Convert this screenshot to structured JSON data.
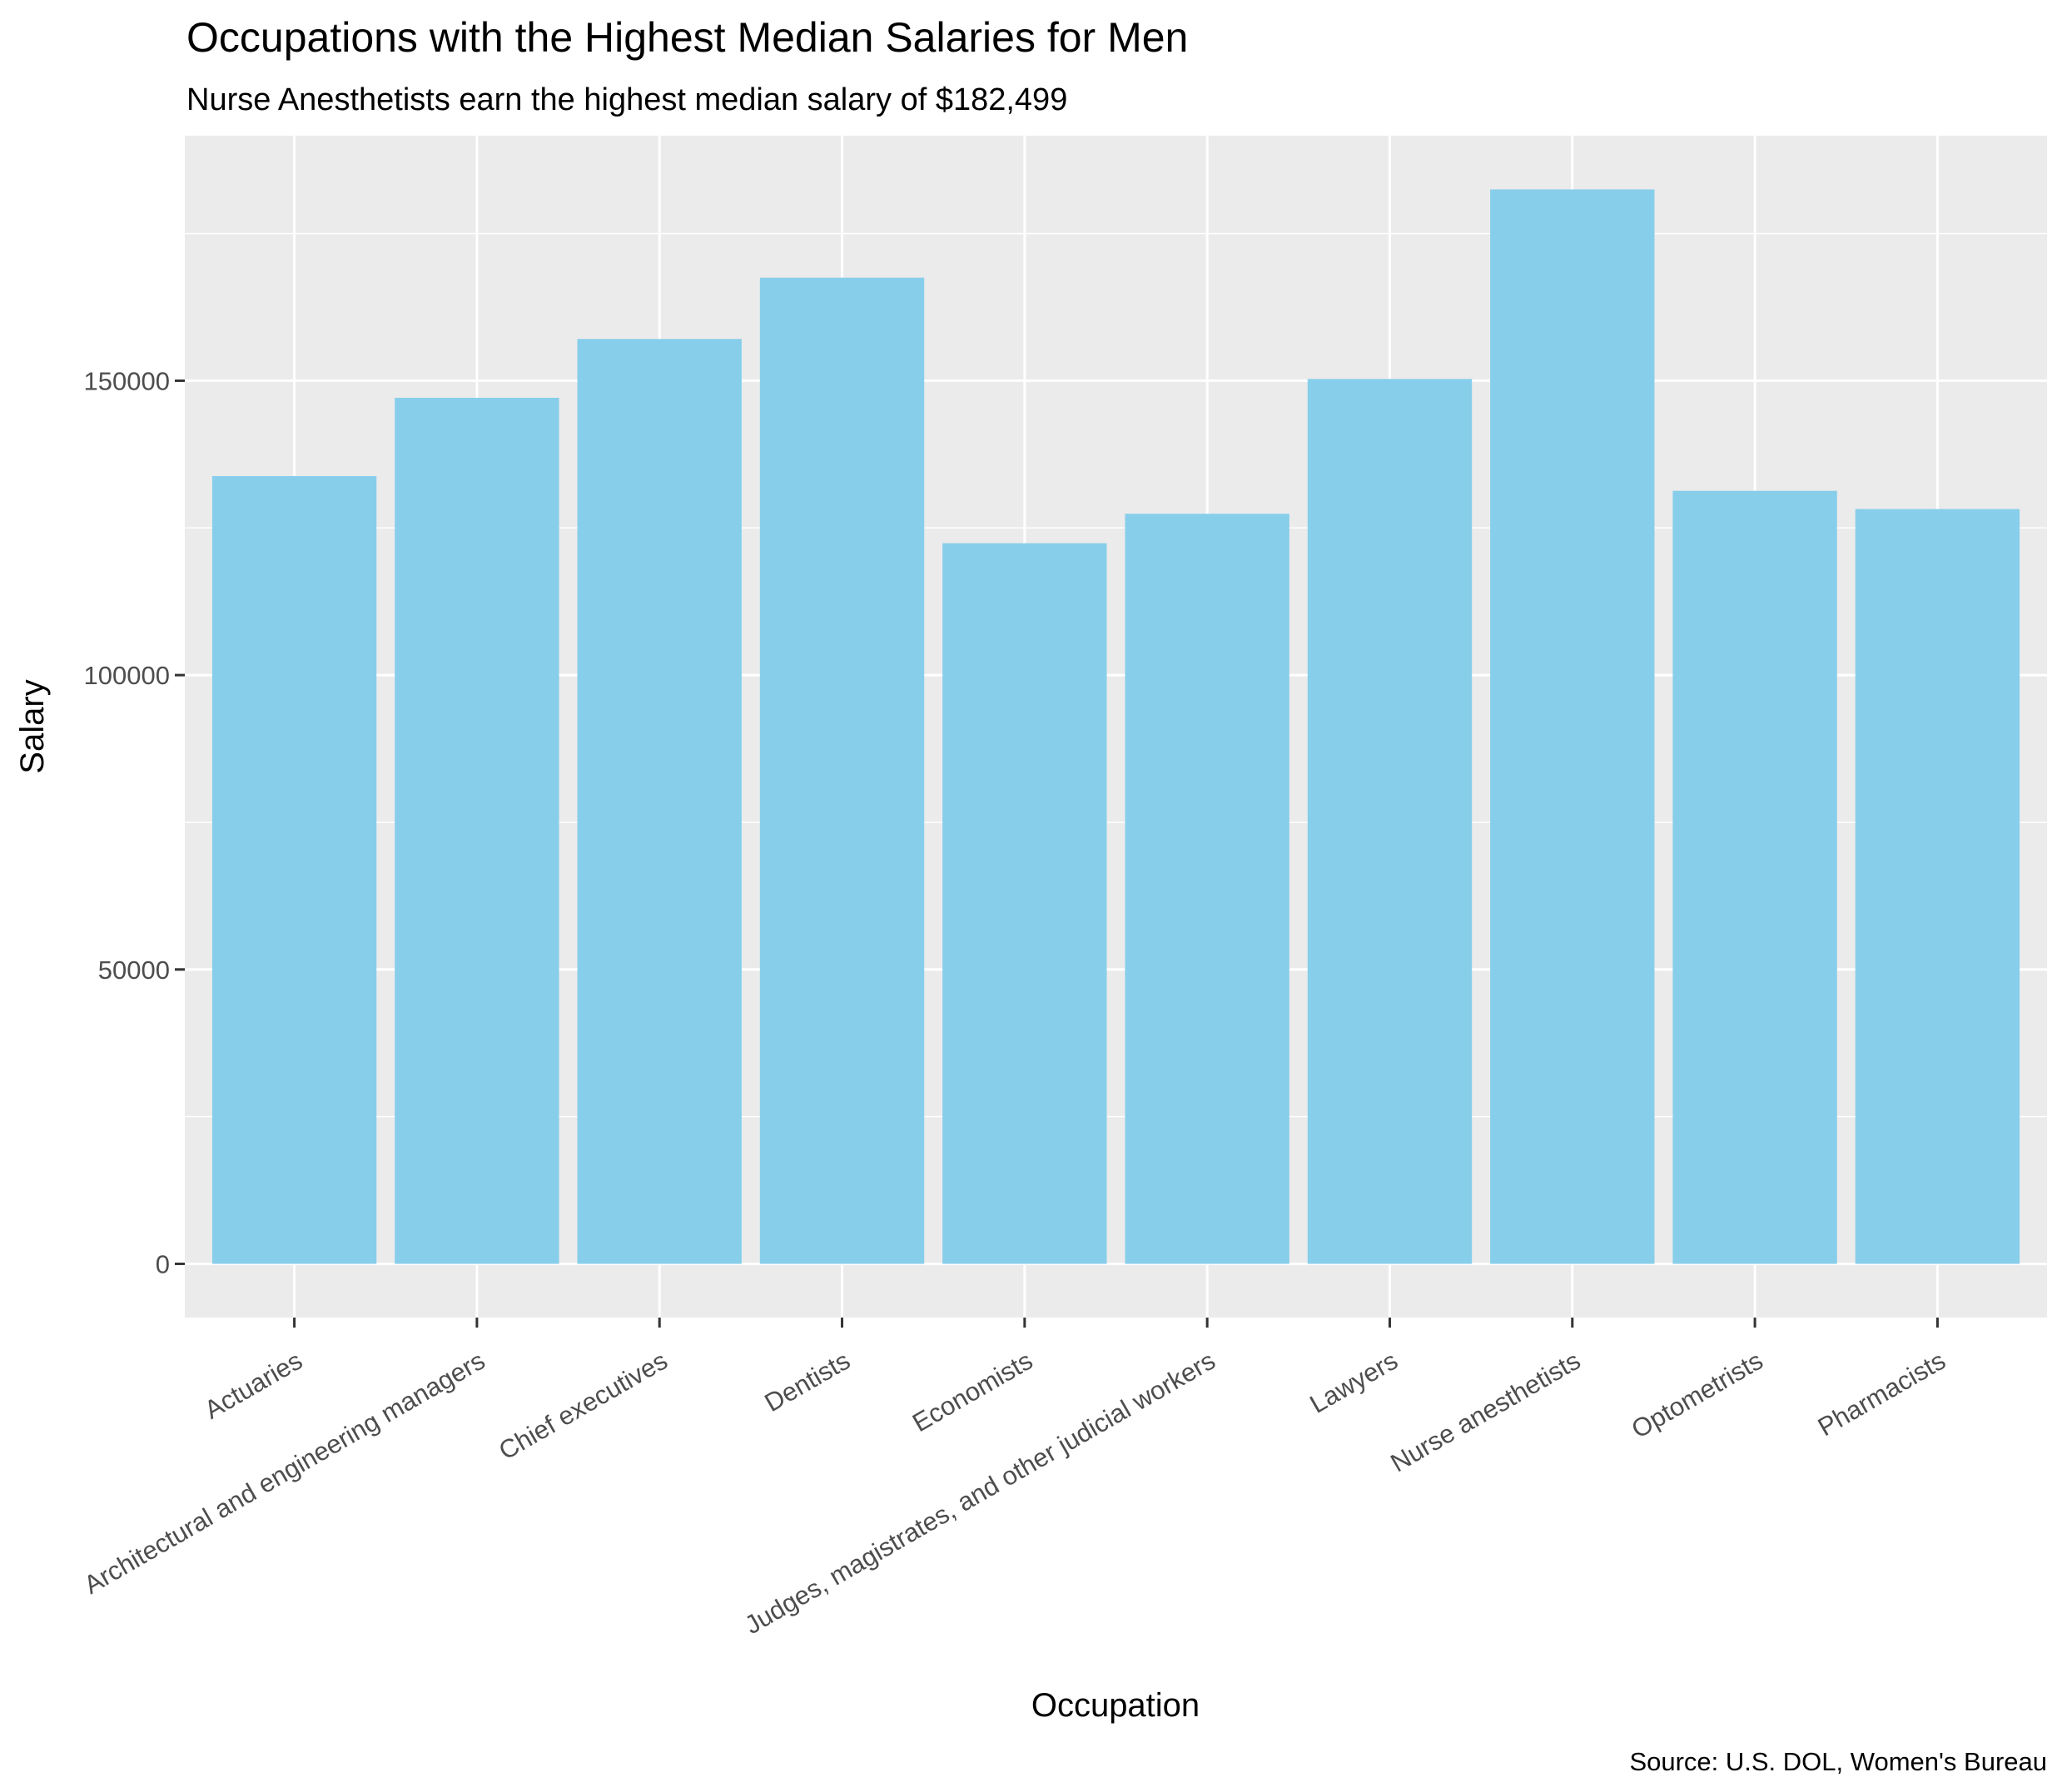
{
  "chart_data": {
    "type": "bar",
    "title": "Occupations with the Highest Median Salaries for Men",
    "subtitle": "Nurse Anesthetists earn the highest median salary of $182,499",
    "xlabel": "Occupation",
    "ylabel": "Salary",
    "caption": "Source: U.S. DOL, Women's Bureau",
    "categories": [
      "Actuaries",
      "Architectural and engineering managers",
      "Chief executives",
      "Dentists",
      "Economists",
      "Judges, magistrates, and other judicial workers",
      "Lawyers",
      "Nurse anesthetists",
      "Optometrists",
      "Pharmacists"
    ],
    "values": [
      133800,
      147100,
      157100,
      167500,
      122400,
      127400,
      150300,
      182499,
      131300,
      128200
    ],
    "ylim": [
      -9125,
      191624
    ],
    "yticks": [
      0,
      50000,
      100000,
      150000
    ],
    "ytick_labels": [
      "0",
      "50000",
      "100000",
      "150000"
    ],
    "grid": true,
    "colors": {
      "bar": "#87CEEB",
      "panel": "#EBEBEB",
      "grid": "#FFFFFF"
    }
  }
}
